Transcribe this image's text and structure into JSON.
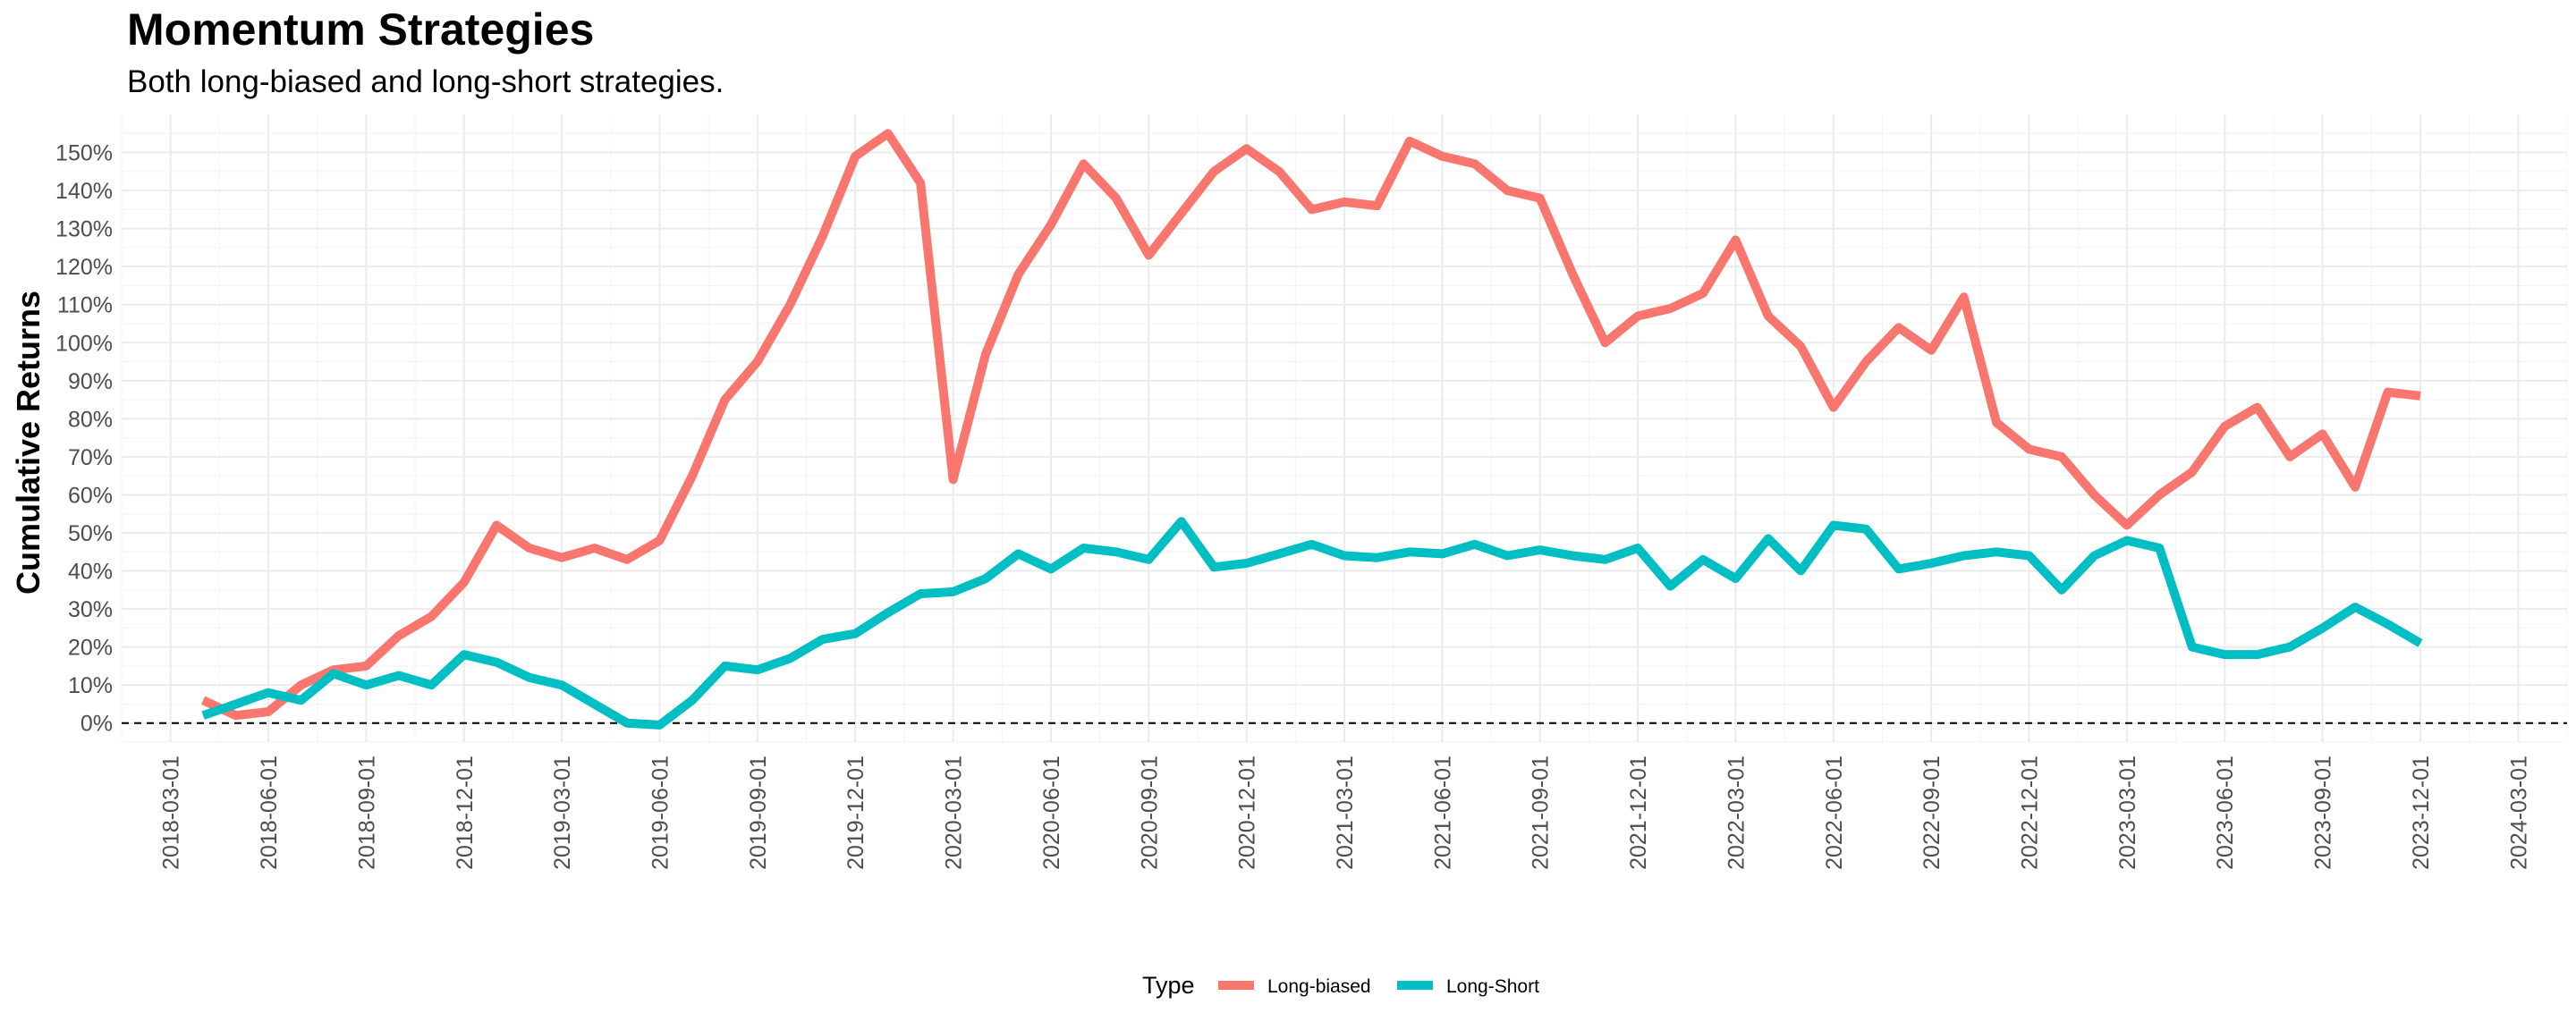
{
  "chart_data": {
    "type": "line",
    "title": "Momentum Strategies",
    "subtitle": "Both long-biased and long-short strategies.",
    "xlabel": "",
    "ylabel": "Cumulative Returns",
    "ylim": [
      -5,
      160
    ],
    "ytick_values": [
      0,
      10,
      20,
      30,
      40,
      50,
      60,
      70,
      80,
      90,
      100,
      110,
      120,
      130,
      140,
      150
    ],
    "ytick_labels": [
      "0%",
      "10%",
      "20%",
      "30%",
      "40%",
      "50%",
      "60%",
      "70%",
      "80%",
      "90%",
      "100%",
      "110%",
      "120%",
      "130%",
      "140%",
      "150%"
    ],
    "xlim_months": [
      -1.5,
      73.5
    ],
    "xtick_months": [
      0,
      3,
      6,
      9,
      12,
      15,
      18,
      21,
      24,
      27,
      30,
      33,
      36,
      39,
      42,
      45,
      48,
      51,
      54,
      57,
      60,
      63,
      66,
      69,
      72
    ],
    "xtick_labels": [
      "2018-03-01",
      "2018-06-01",
      "2018-09-01",
      "2018-12-01",
      "2019-03-01",
      "2019-06-01",
      "2019-09-01",
      "2019-12-01",
      "2020-03-01",
      "2020-06-01",
      "2020-09-01",
      "2020-12-01",
      "2021-03-01",
      "2021-06-01",
      "2021-09-01",
      "2021-12-01",
      "2022-03-01",
      "2022-06-01",
      "2022-09-01",
      "2022-12-01",
      "2023-03-01",
      "2023-06-01",
      "2023-09-01",
      "2023-12-01",
      "2024-03-01"
    ],
    "reference_line": {
      "y": 0,
      "style": "dashed"
    },
    "legend": {
      "title": "Type",
      "position": "bottom"
    },
    "x_months": [
      1,
      2,
      3,
      4,
      5,
      6,
      7,
      8,
      9,
      10,
      11,
      12,
      13,
      14,
      15,
      16,
      17,
      18,
      19,
      20,
      21,
      22,
      23,
      24,
      25,
      26,
      27,
      28,
      29,
      30,
      31,
      32,
      33,
      34,
      35,
      36,
      37,
      38,
      39,
      40,
      41,
      42,
      43,
      44,
      45,
      46,
      47,
      48,
      49,
      50,
      51,
      52,
      53,
      54,
      55,
      56,
      57,
      58,
      59,
      60,
      61,
      62,
      63,
      64,
      65,
      66,
      67,
      68,
      69
    ],
    "series": [
      {
        "name": "Long-biased",
        "color": "#F8766D",
        "values": [
          6,
          2,
          3,
          10,
          14,
          15,
          23,
          28,
          37,
          52,
          46,
          43.5,
          46,
          43,
          48,
          65,
          85,
          95,
          110,
          128,
          149,
          155,
          142,
          64,
          97,
          118,
          131,
          147,
          138,
          123,
          134,
          145,
          151,
          145,
          135,
          137,
          136,
          153,
          149,
          147,
          140,
          138,
          118,
          100,
          107,
          109,
          113,
          127,
          107,
          99,
          83,
          95,
          104,
          98,
          112,
          79,
          72,
          70,
          60,
          52,
          60,
          66,
          78,
          83,
          70,
          76,
          62,
          87,
          86
        ]
      },
      {
        "name": "Long-Short",
        "color": "#00BFC4",
        "values": [
          2,
          5,
          8,
          6,
          13,
          10,
          12.5,
          10,
          18,
          16,
          12,
          10,
          5,
          0,
          -0.5,
          6,
          15,
          14,
          17,
          22,
          23.5,
          29,
          34,
          34.5,
          38,
          44.5,
          40.5,
          46,
          45,
          43,
          53,
          41,
          42,
          44.5,
          47,
          44,
          43.5,
          45,
          44.5,
          47,
          44,
          45.5,
          44,
          43,
          46,
          36,
          43,
          38,
          48.5,
          40,
          52,
          51,
          40.5,
          42,
          44,
          45,
          44,
          35,
          44,
          48,
          46,
          20,
          18,
          18,
          20,
          25,
          30.5,
          26,
          21
        ]
      }
    ]
  }
}
